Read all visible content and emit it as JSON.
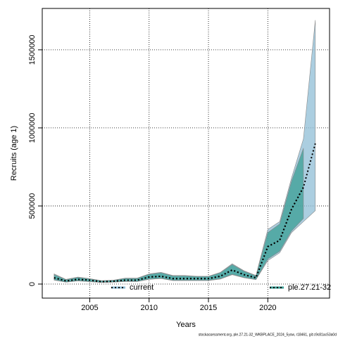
{
  "chart_data": {
    "type": "line",
    "x_label": "Years",
    "y_label": "Recruits (age 1)",
    "footer": "stockassessment.org, ple.27.21-32_WKBPLACE_2024_5ysw, r18461, git:c9c81ac53a0d",
    "x": [
      2002,
      2003,
      2004,
      2005,
      2006,
      2007,
      2008,
      2009,
      2010,
      2011,
      2012,
      2013,
      2014,
      2015,
      2016,
      2017,
      2018,
      2019,
      2020,
      2021,
      2022,
      2023,
      2024
    ],
    "series": [
      {
        "name": "current",
        "color": "#8fbdd6",
        "line_color": "#000000",
        "values": [
          40000,
          20000,
          30000,
          25000,
          15000,
          18000,
          25000,
          25000,
          45000,
          50000,
          35000,
          35000,
          35000,
          35000,
          50000,
          90000,
          60000,
          40000,
          240000,
          280000,
          480000,
          620000,
          900000
        ],
        "lower": [
          25000,
          12000,
          20000,
          15000,
          10000,
          12000,
          16000,
          16000,
          30000,
          35000,
          22000,
          22000,
          22000,
          22000,
          32000,
          60000,
          40000,
          28000,
          150000,
          200000,
          330000,
          400000,
          470000
        ],
        "upper": [
          65000,
          30000,
          45000,
          35000,
          22000,
          25000,
          38000,
          38000,
          65000,
          75000,
          55000,
          55000,
          50000,
          50000,
          75000,
          130000,
          85000,
          55000,
          350000,
          400000,
          680000,
          930000,
          1690000
        ]
      },
      {
        "name": "ple.27.21-32",
        "color": "#3a9e94",
        "line_color": "#000000",
        "values": [
          40000,
          20000,
          30000,
          25000,
          15000,
          18000,
          25000,
          25000,
          45000,
          50000,
          35000,
          35000,
          35000,
          35000,
          50000,
          90000,
          60000,
          40000,
          240000,
          280000,
          480000,
          620000,
          null
        ],
        "lower": [
          27000,
          13000,
          21000,
          16000,
          11000,
          13000,
          17000,
          17000,
          32000,
          37000,
          24000,
          24000,
          24000,
          24000,
          34000,
          62000,
          42000,
          30000,
          160000,
          210000,
          340000,
          420000,
          null
        ],
        "upper": [
          60000,
          28000,
          42000,
          33000,
          21000,
          24000,
          36000,
          36000,
          62000,
          72000,
          52000,
          52000,
          48000,
          48000,
          72000,
          125000,
          82000,
          52000,
          330000,
          385000,
          660000,
          870000,
          null
        ]
      }
    ],
    "xlim": [
      2001,
      2025.2
    ],
    "ylim": [
      -90000,
      1765000
    ],
    "xticks": [
      2005,
      2010,
      2015,
      2020
    ],
    "yticks": [
      0,
      500000,
      1000000,
      1500000
    ],
    "grid": true,
    "legend": "bottom"
  }
}
